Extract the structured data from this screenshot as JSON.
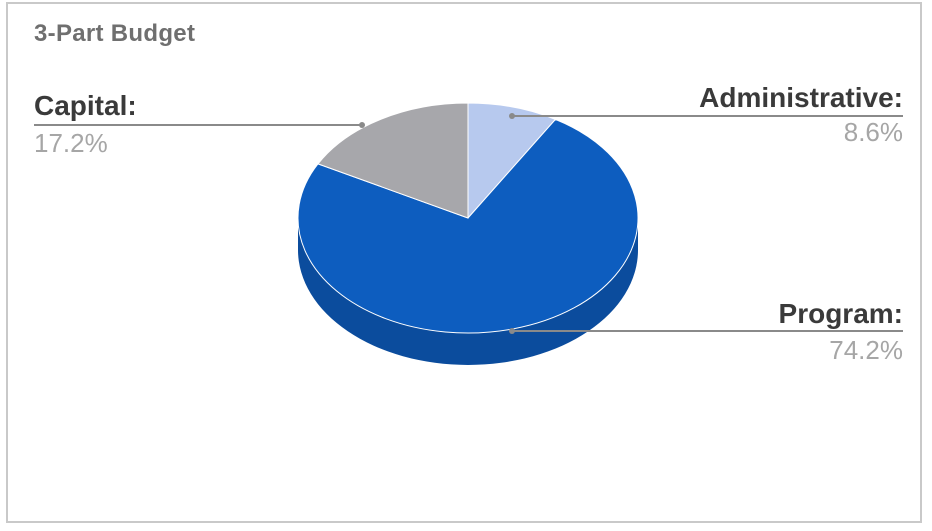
{
  "chart_data": {
    "type": "pie",
    "title": "3-Part Budget",
    "slices": [
      {
        "label": "Administrative:",
        "value": 8.6,
        "display": "8.6%",
        "color": "#b7c9ee"
      },
      {
        "label": "Program:",
        "value": 74.2,
        "display": "74.2%",
        "color": "#0d5dbf"
      },
      {
        "label": "Capital:",
        "value": 17.2,
        "display": "17.2%",
        "color": "#a7a7ab"
      }
    ],
    "legend": "none",
    "style": "3d"
  }
}
